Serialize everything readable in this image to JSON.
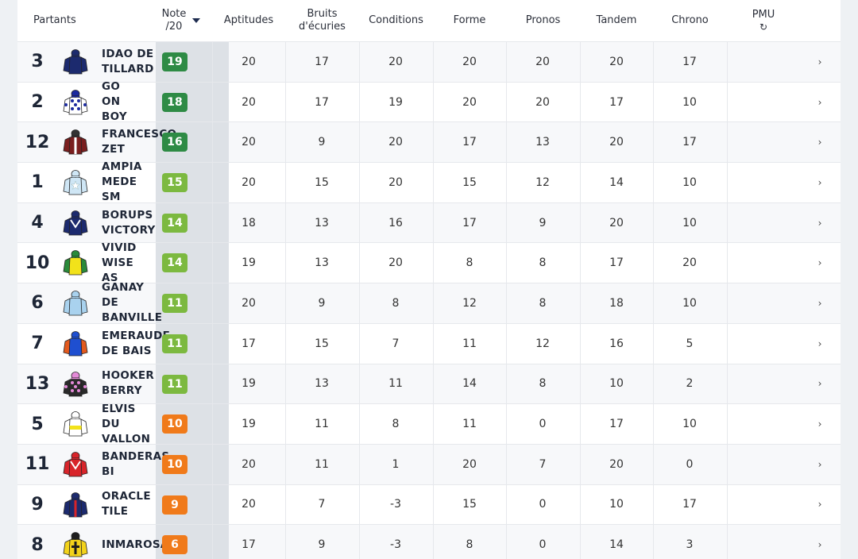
{
  "header": {
    "partants": "Partants",
    "note_line1": "Note",
    "note_line2": "/20",
    "aptitudes": "Aptitudes",
    "bruits_line1": "Bruits",
    "bruits_line2": "d'écuries",
    "conditions": "Conditions",
    "forme": "Forme",
    "pronos": "Pronos",
    "tandem": "Tandem",
    "chrono": "Chrono",
    "pmu": "PMU",
    "refresh_glyph": "↻"
  },
  "colors": {
    "green_dark": "#2e8b45",
    "green_light": "#7cb940",
    "orange": "#f07a1a"
  },
  "rows": [
    {
      "num": "3",
      "name": [
        "IDAO DE",
        "TILLARD"
      ],
      "note": "19",
      "level": "green_dark",
      "silk": {
        "body": "#1c2a6e",
        "accent": "#1c2a6e",
        "cap": "#1c2a6e",
        "pattern": "plain"
      },
      "scores": [
        "20",
        "17",
        "20",
        "20",
        "20",
        "20",
        "17"
      ]
    },
    {
      "num": "2",
      "name": [
        "GO",
        "ON",
        "BOY"
      ],
      "note": "18",
      "level": "green_dark",
      "silk": {
        "body": "#ffffff",
        "accent": "#1c2a9e",
        "cap": "#1c2a9e",
        "pattern": "stars"
      },
      "scores": [
        "20",
        "17",
        "19",
        "20",
        "20",
        "17",
        "10"
      ]
    },
    {
      "num": "12",
      "name": [
        "FRANCESCO",
        "ZET"
      ],
      "note": "16",
      "level": "green_dark",
      "silk": {
        "body": "#7a1e1e",
        "accent": "#ffffff",
        "cap": "#333333",
        "pattern": "stripe"
      },
      "scores": [
        "20",
        "9",
        "20",
        "17",
        "13",
        "20",
        "17"
      ]
    },
    {
      "num": "1",
      "name": [
        "AMPIA",
        "MEDE",
        "SM"
      ],
      "note": "15",
      "level": "green_light",
      "silk": {
        "body": "#cfe6f5",
        "accent": "#ffffff",
        "cap": "#cfe6f5",
        "pattern": "star"
      },
      "scores": [
        "20",
        "15",
        "20",
        "15",
        "12",
        "14",
        "10"
      ]
    },
    {
      "num": "4",
      "name": [
        "BORUPS",
        "VICTORY"
      ],
      "note": "14",
      "level": "green_light",
      "silk": {
        "body": "#1c2a6e",
        "accent": "#ffffff",
        "cap": "#1c2a6e",
        "pattern": "chevron"
      },
      "scores": [
        "18",
        "13",
        "16",
        "17",
        "9",
        "20",
        "10"
      ]
    },
    {
      "num": "10",
      "name": [
        "VIVID",
        "WISE",
        "AS"
      ],
      "note": "14",
      "level": "green_light",
      "silk": {
        "body": "#f2e21a",
        "accent": "#2a8a3a",
        "cap": "#2a8a3a",
        "pattern": "sleeves"
      },
      "scores": [
        "19",
        "13",
        "20",
        "8",
        "8",
        "17",
        "20"
      ]
    },
    {
      "num": "6",
      "name": [
        "GANAY",
        "DE",
        "BANVILLE"
      ],
      "note": "11",
      "level": "green_light",
      "silk": {
        "body": "#a9d2ee",
        "accent": "#a9d2ee",
        "cap": "#a9d2ee",
        "pattern": "plain"
      },
      "scores": [
        "20",
        "9",
        "8",
        "12",
        "8",
        "18",
        "10"
      ]
    },
    {
      "num": "7",
      "name": [
        "EMERAUDE",
        "DE BAIS"
      ],
      "note": "11",
      "level": "green_light",
      "silk": {
        "body": "#1f4fd0",
        "accent": "#e35a1e",
        "cap": "#1f4fd0",
        "pattern": "sleeves"
      },
      "scores": [
        "17",
        "15",
        "7",
        "11",
        "12",
        "16",
        "5"
      ]
    },
    {
      "num": "13",
      "name": [
        "HOOKER",
        "BERRY"
      ],
      "note": "11",
      "level": "green_light",
      "silk": {
        "body": "#2a2a2a",
        "accent": "#e48ad8",
        "cap": "#e48ad8",
        "pattern": "dots"
      },
      "scores": [
        "19",
        "13",
        "11",
        "14",
        "8",
        "10",
        "2"
      ]
    },
    {
      "num": "5",
      "name": [
        "ELVIS",
        "DU",
        "VALLON"
      ],
      "note": "10",
      "level": "orange",
      "silk": {
        "body": "#ffffff",
        "accent": "#f2e21a",
        "cap": "#ffffff",
        "pattern": "band"
      },
      "scores": [
        "19",
        "11",
        "8",
        "11",
        "0",
        "17",
        "10"
      ]
    },
    {
      "num": "11",
      "name": [
        "BANDERAS",
        "BI"
      ],
      "note": "10",
      "level": "orange",
      "silk": {
        "body": "#d8242a",
        "accent": "#ffffff",
        "cap": "#d8242a",
        "pattern": "chevron"
      },
      "scores": [
        "20",
        "11",
        "1",
        "20",
        "7",
        "20",
        "0"
      ]
    },
    {
      "num": "9",
      "name": [
        "ORACLE",
        "TILE"
      ],
      "note": "9",
      "level": "orange",
      "silk": {
        "body": "#1c2a6e",
        "accent": "#d8242a",
        "cap": "#1c2a6e",
        "pattern": "stripe"
      },
      "scores": [
        "20",
        "7",
        "-3",
        "15",
        "0",
        "10",
        "17"
      ]
    },
    {
      "num": "8",
      "name": [
        "INMAROSA"
      ],
      "note": "6",
      "level": "orange",
      "silk": {
        "body": "#f2d21a",
        "accent": "#1e1e1e",
        "cap": "#1e1e1e",
        "pattern": "cross"
      },
      "scores": [
        "17",
        "9",
        "-3",
        "8",
        "0",
        "14",
        "3"
      ]
    }
  ],
  "icons": {
    "chevron": "chevron-right-icon",
    "sort": "sort-down-icon",
    "refresh": "refresh-icon",
    "silk": "jockey-silk-icon"
  },
  "chevron_glyph": "›"
}
